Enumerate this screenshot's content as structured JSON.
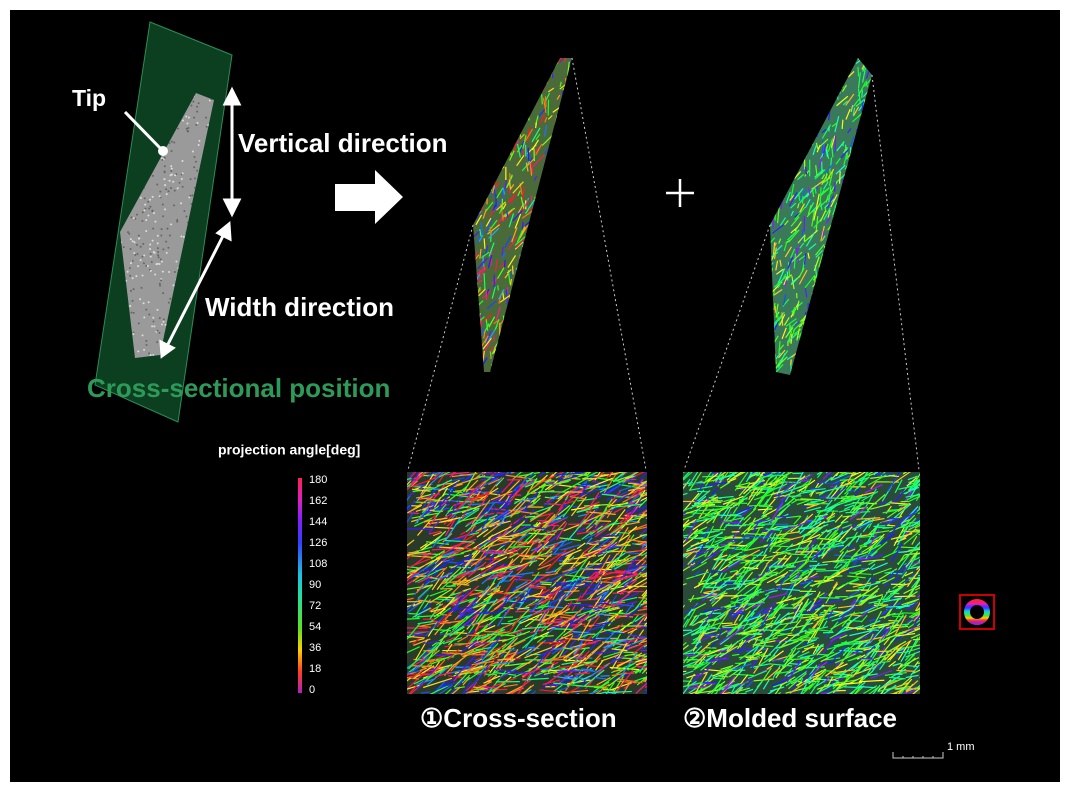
{
  "labels": {
    "tip": "Tip",
    "vertical_direction": "Vertical direction",
    "width_direction": "Width direction",
    "cross_sectional_position": "Cross-sectional position"
  },
  "colorbar": {
    "title": "projection angle[deg]",
    "ticks": [
      180,
      162,
      144,
      126,
      108,
      90,
      72,
      54,
      36,
      18,
      0
    ]
  },
  "panels": [
    {
      "caption": "①Cross-section"
    },
    {
      "caption": "②Molded surface"
    }
  ],
  "scale_bar": {
    "label": "1 mm"
  }
}
